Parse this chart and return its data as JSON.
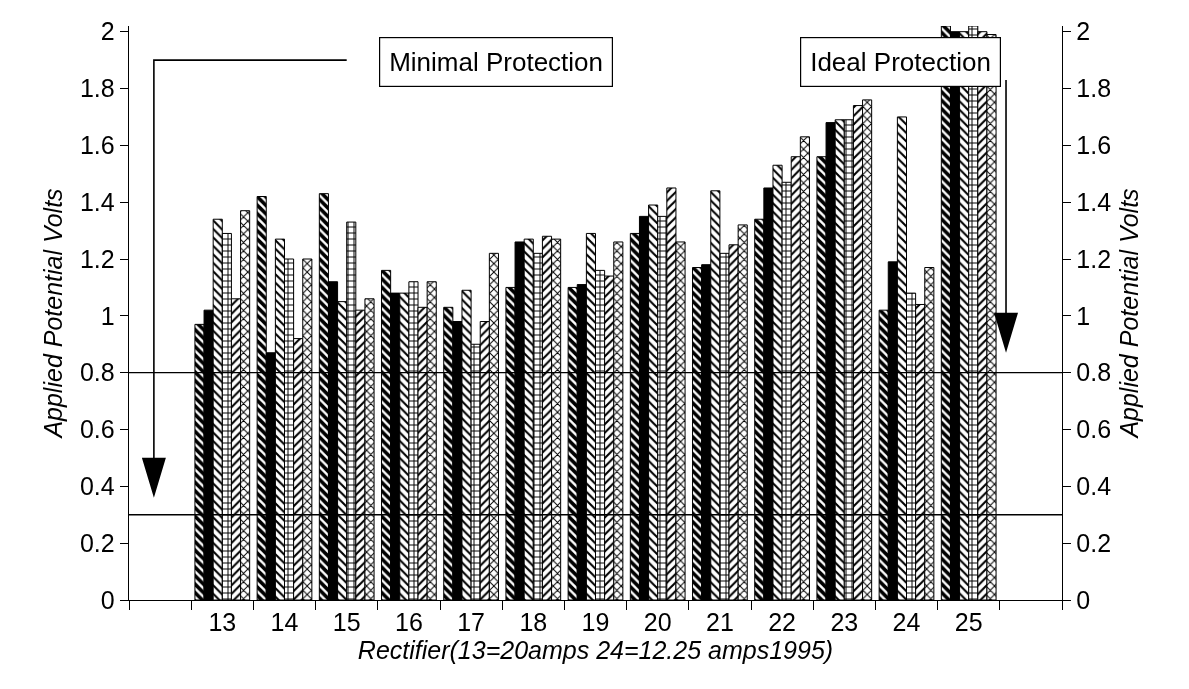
{
  "chart_data": {
    "type": "bar",
    "xlabel": "Rectifier(13=20amps 24=12.25 amps1995)",
    "ylabel": "Applied Potential Volts",
    "y2label": "Applied Potential Volts",
    "categories": [
      null,
      "13",
      "14",
      "15",
      "16",
      "17",
      "18",
      "19",
      "20",
      "21",
      "22",
      "23",
      "24",
      "25",
      null
    ],
    "series": [
      {
        "color": "#000000",
        "values": [
          null,
          0.97,
          1.42,
          1.43,
          1.16,
          1.03,
          1.1,
          1.1,
          1.29,
          1.17,
          1.34,
          1.56,
          1.02,
          2.02,
          null
        ]
      },
      {
        "color": "#000000",
        "values": [
          null,
          1.02,
          0.87,
          1.12,
          1.08,
          0.98,
          1.26,
          1.11,
          1.35,
          1.18,
          1.45,
          1.68,
          1.19,
          2.0,
          null
        ]
      },
      {
        "color": "#000000",
        "values": [
          null,
          1.34,
          1.27,
          1.05,
          1.08,
          1.09,
          1.27,
          1.29,
          1.39,
          1.44,
          1.53,
          1.69,
          1.7,
          2.0,
          null
        ]
      },
      {
        "color": "#000000",
        "values": [
          null,
          1.29,
          1.2,
          1.33,
          1.12,
          0.9,
          1.22,
          1.16,
          1.35,
          1.22,
          1.47,
          1.69,
          1.08,
          2.02,
          null
        ]
      },
      {
        "color": "#000000",
        "values": [
          null,
          1.06,
          0.92,
          1.02,
          1.03,
          0.98,
          1.28,
          1.14,
          1.45,
          1.25,
          1.56,
          1.74,
          1.04,
          2.0,
          null
        ]
      },
      {
        "color": "#000000",
        "values": [
          null,
          1.37,
          1.2,
          1.06,
          1.12,
          1.22,
          1.27,
          1.26,
          1.26,
          1.32,
          1.63,
          1.76,
          1.17,
          1.99,
          null
        ]
      }
    ],
    "ylim": [
      0,
      2.02
    ],
    "yticks": [
      0,
      0.2,
      0.4,
      0.6,
      0.8,
      1,
      1.2,
      1.4,
      1.6,
      1.8,
      2
    ],
    "y2lim": [
      0,
      2.02
    ],
    "y2ticks": [
      0,
      0.2,
      0.4,
      0.6,
      0.8,
      1,
      1.2,
      1.4,
      1.6,
      1.8,
      2
    ],
    "ref_lines": [
      {
        "axis": "y",
        "value": 0.8
      },
      {
        "axis": "y",
        "value": 0.3
      }
    ],
    "annotations": [
      "Minimal Protection",
      "Ideal Protection"
    ],
    "grid": false
  }
}
